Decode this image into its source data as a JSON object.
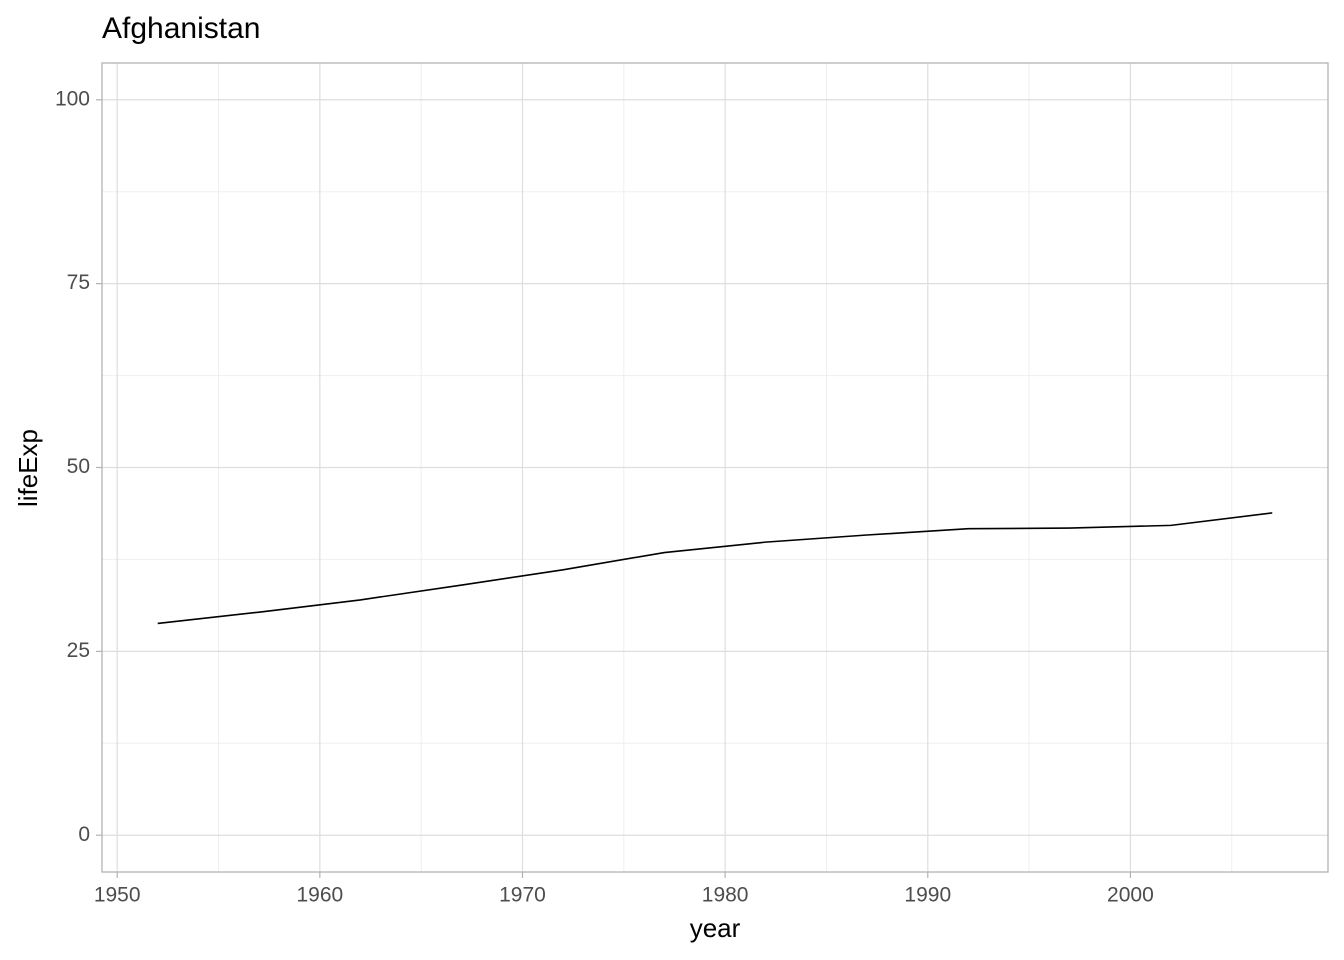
{
  "chart_data": {
    "type": "line",
    "title": "Afghanistan",
    "x_label": "year",
    "y_label": "lifeExp",
    "x": [
      1952,
      1957,
      1962,
      1967,
      1972,
      1977,
      1982,
      1987,
      1992,
      1997,
      2002,
      2007
    ],
    "series": [
      {
        "name": "Afghanistan",
        "color": "#000000",
        "values": [
          28.801,
          30.332,
          31.997,
          34.02,
          36.088,
          38.438,
          39.854,
          40.822,
          41.674,
          41.763,
          42.129,
          43.828
        ]
      }
    ],
    "xlim": [
      1949.25,
      2009.75
    ],
    "xticks": [
      1950,
      1960,
      1970,
      1980,
      1990,
      2000
    ],
    "ylim": [
      -5,
      105
    ],
    "yticks": [
      0,
      25,
      50,
      75,
      100
    ],
    "grid": true,
    "legend": false
  }
}
